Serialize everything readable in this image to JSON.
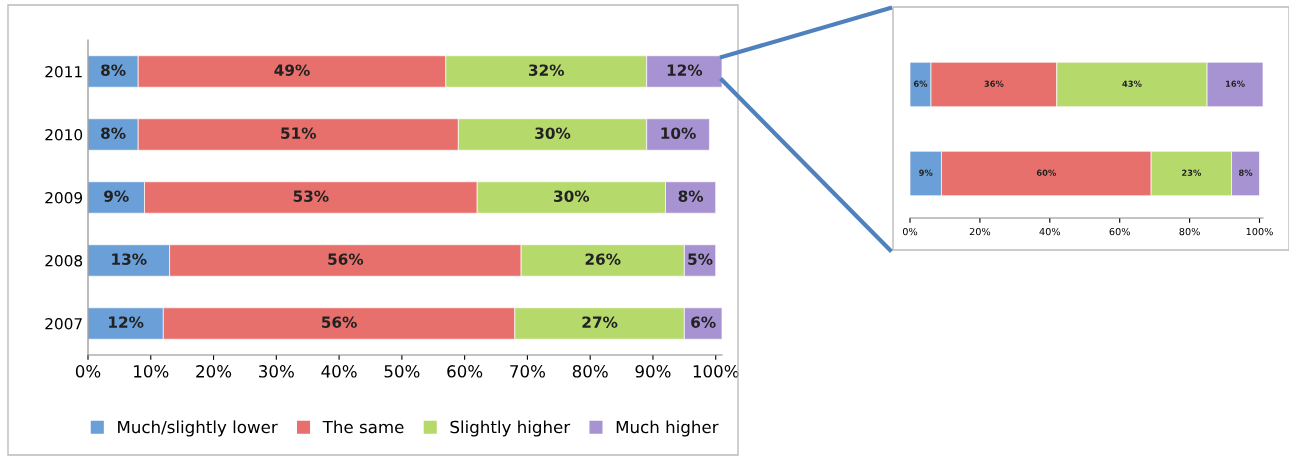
{
  "chart_data": [
    {
      "type": "bar",
      "orientation": "horizontal",
      "stacked": true,
      "categories": [
        "2011",
        "2010",
        "2009",
        "2008",
        "2007"
      ],
      "xlim": [
        0,
        101
      ],
      "xticks": [
        {
          "value": 0,
          "label": "0%"
        },
        {
          "value": 10,
          "label": "10%"
        },
        {
          "value": 20,
          "label": "20%"
        },
        {
          "value": 30,
          "label": "30%"
        },
        {
          "value": 40,
          "label": "40%"
        },
        {
          "value": 50,
          "label": "50%"
        },
        {
          "value": 60,
          "label": "60%"
        },
        {
          "value": 70,
          "label": "70%"
        },
        {
          "value": 80,
          "label": "80%"
        },
        {
          "value": 90,
          "label": "90%"
        },
        {
          "value": 100,
          "label": "100%"
        }
      ],
      "legend": "bottom",
      "grid": false,
      "series": [
        {
          "name": "Much/slightly lower",
          "color": "#6b9fd8",
          "values": [
            8,
            8,
            9,
            13,
            12
          ],
          "value_labels": [
            "8%",
            "8%",
            "9%",
            "13%",
            "12%"
          ]
        },
        {
          "name": "The same",
          "color": "#e8706c",
          "values": [
            49,
            51,
            53,
            56,
            56
          ],
          "value_labels": [
            "49%",
            "51%",
            "53%",
            "56%",
            "56%"
          ]
        },
        {
          "name": "Slightly higher",
          "color": "#b6d96c",
          "values": [
            32,
            30,
            30,
            26,
            27
          ],
          "value_labels": [
            "32%",
            "30%",
            "30%",
            "26%",
            "27%"
          ]
        },
        {
          "name": "Much higher",
          "color": "#a893d2",
          "values": [
            12,
            10,
            8,
            5,
            6
          ],
          "value_labels": [
            "12%",
            "10%",
            "8%",
            "5%",
            "6%"
          ]
        }
      ]
    },
    {
      "type": "bar",
      "orientation": "horizontal",
      "stacked": true,
      "categories": [
        null,
        null
      ],
      "xlim": [
        0,
        101
      ],
      "xticks": [
        {
          "value": 0,
          "label": "0%"
        },
        {
          "value": 20,
          "label": "20%"
        },
        {
          "value": 40,
          "label": "40%"
        },
        {
          "value": 60,
          "label": "60%"
        },
        {
          "value": 80,
          "label": "80%"
        },
        {
          "value": 100,
          "label": "100%"
        }
      ],
      "grid": false,
      "series": [
        {
          "color": "#6b9fd8",
          "values": [
            6,
            9
          ],
          "value_labels": [
            "6%",
            "9%"
          ]
        },
        {
          "color": "#e8706c",
          "values": [
            36,
            60
          ],
          "value_labels": [
            "36%",
            "60%"
          ]
        },
        {
          "color": "#b6d96c",
          "values": [
            43,
            23
          ],
          "value_labels": [
            "43%",
            "23%"
          ]
        },
        {
          "color": "#a893d2",
          "values": [
            16,
            8
          ],
          "value_labels": [
            "16%",
            "8%"
          ]
        }
      ]
    }
  ]
}
